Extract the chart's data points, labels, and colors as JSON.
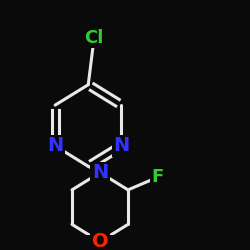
{
  "background_color": "#0a0a0a",
  "bond_color": "#e8e8e8",
  "bond_width": 2.2,
  "atom_colors": {
    "N": "#3333ff",
    "Cl": "#33cc33",
    "F": "#33cc33",
    "O": "#ff2200"
  },
  "font_size_N": 14,
  "font_size_Cl": 13,
  "font_size_F": 13,
  "font_size_O": 14
}
